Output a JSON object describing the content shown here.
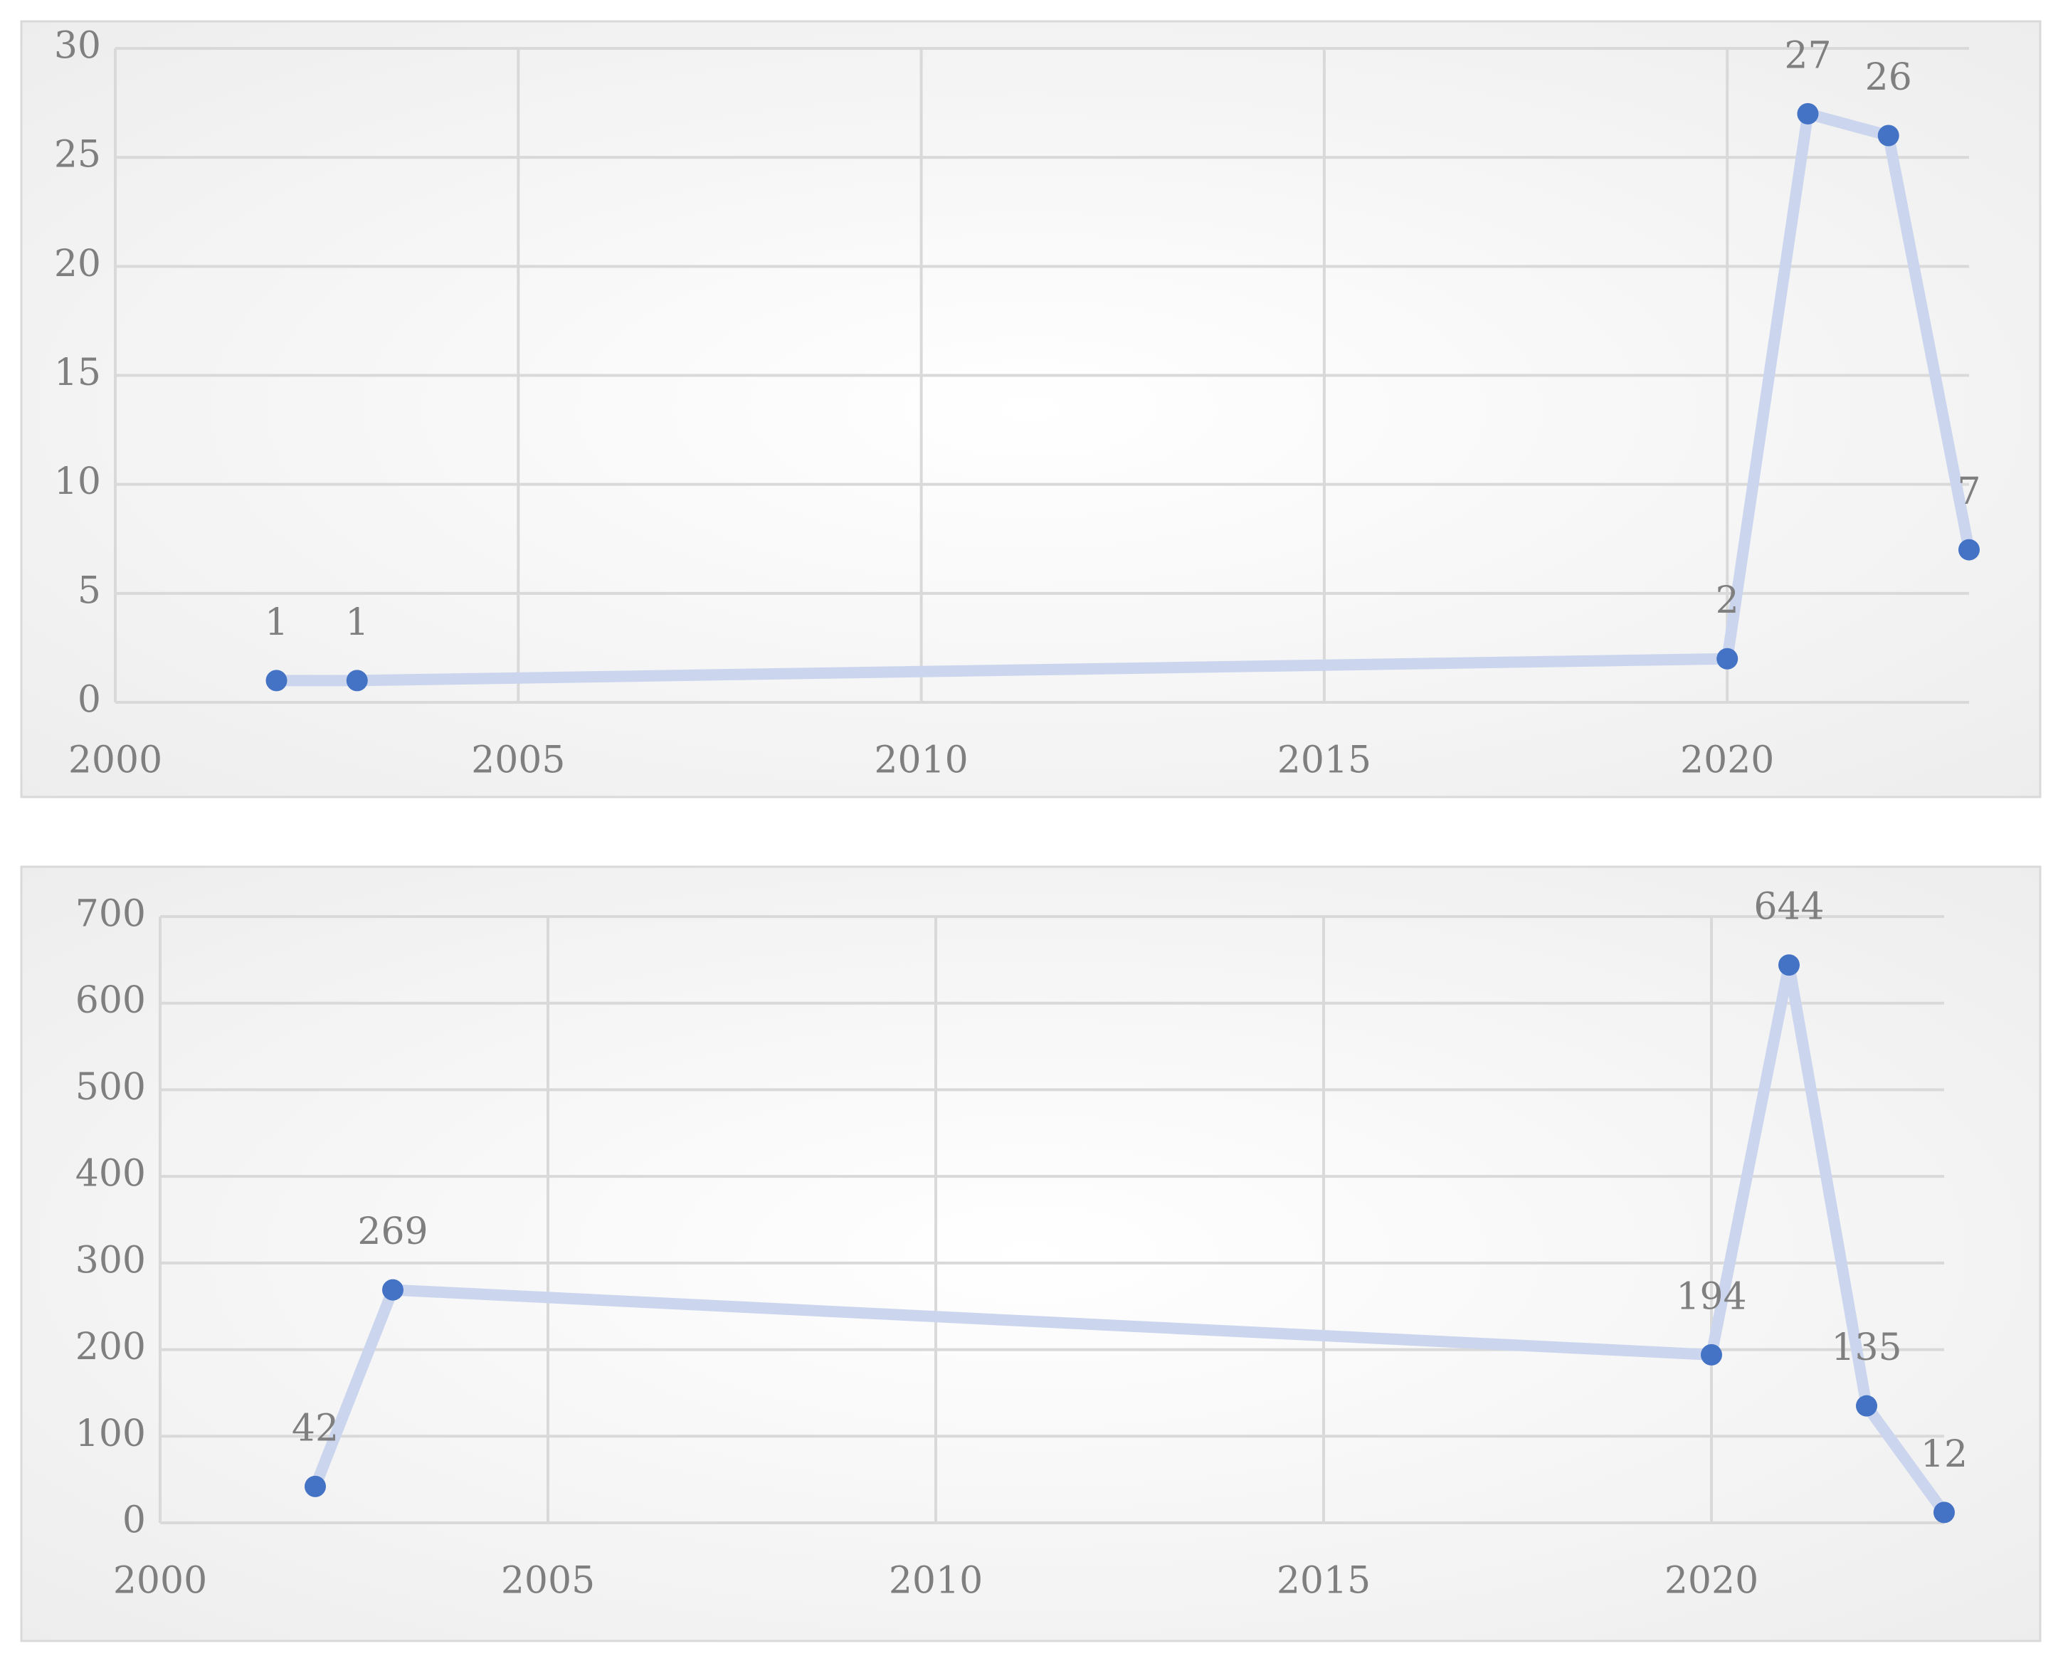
{
  "chart_data": [
    {
      "type": "line",
      "x": [
        2002,
        2003,
        2020,
        2021,
        2022,
        2023
      ],
      "values": [
        1,
        1,
        2,
        27,
        26,
        7
      ],
      "color": "#4472c4",
      "line_color": "#cbd6ee",
      "xlim": [
        2000,
        2023
      ],
      "xticks": [
        2000,
        2005,
        2010,
        2015,
        2020
      ],
      "ylim": [
        0,
        30
      ],
      "yticks": [
        0,
        5,
        10,
        15,
        20,
        25,
        30
      ],
      "grid": true,
      "data_labels": true
    },
    {
      "type": "line",
      "x": [
        2002,
        2003,
        2020,
        2021,
        2022,
        2023
      ],
      "values": [
        42,
        269,
        194,
        644,
        135,
        12
      ],
      "color": "#4472c4",
      "line_color": "#cbd6ee",
      "xlim": [
        2000,
        2023
      ],
      "xticks": [
        2000,
        2005,
        2010,
        2015,
        2020
      ],
      "ylim": [
        0,
        700
      ],
      "yticks": [
        0,
        100,
        200,
        300,
        400,
        500,
        600,
        700
      ],
      "grid": true,
      "data_labels": true
    }
  ]
}
